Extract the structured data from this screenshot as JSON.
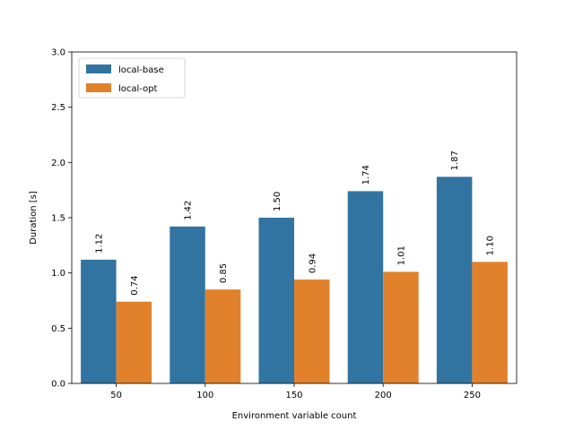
{
  "chart_data": {
    "type": "bar",
    "title": "",
    "xlabel": "Environment variable count",
    "ylabel": "Duration [s]",
    "categories": [
      "50",
      "100",
      "150",
      "200",
      "250"
    ],
    "series": [
      {
        "name": "local-base",
        "values": [
          1.12,
          1.42,
          1.5,
          1.74,
          1.87
        ],
        "color": "#3274a1",
        "labels": [
          "1.12",
          "1.42",
          "1.50",
          "1.74",
          "1.87"
        ]
      },
      {
        "name": "local-opt",
        "values": [
          0.74,
          0.85,
          0.94,
          1.01,
          1.1
        ],
        "color": "#e1812c",
        "labels": [
          "0.74",
          "0.85",
          "0.94",
          "1.01",
          "1.10"
        ]
      }
    ],
    "ylim": [
      0,
      3.0
    ],
    "yticks": [
      0.0,
      0.5,
      1.0,
      1.5,
      2.0,
      2.5,
      3.0
    ],
    "ytick_labels": [
      "0.0",
      "0.5",
      "1.0",
      "1.5",
      "2.0",
      "2.5",
      "3.0"
    ],
    "grid": false,
    "legend": "top-left"
  }
}
